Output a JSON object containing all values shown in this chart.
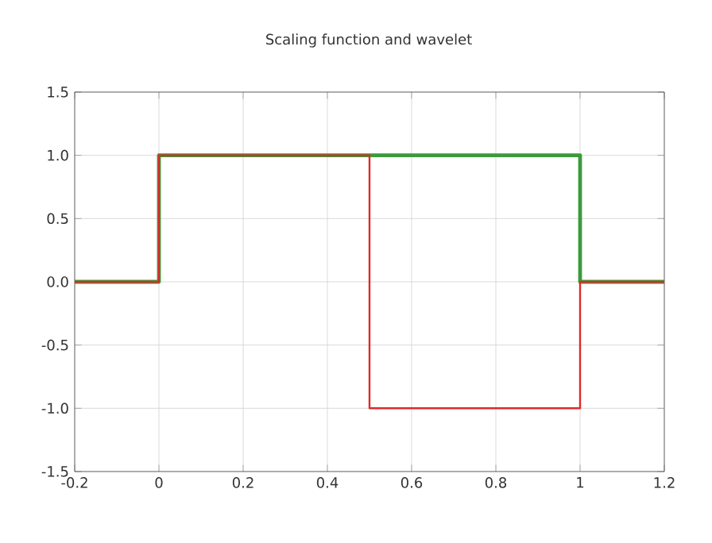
{
  "chart_data": {
    "type": "line",
    "title": "Scaling function and wavelet",
    "series": [
      {
        "color": "#3c9a3c",
        "x": [
          -0.2,
          0,
          0,
          1,
          1,
          1.2
        ],
        "values": [
          0,
          0,
          1,
          1,
          0,
          0
        ]
      },
      {
        "color": "#dd2a2a",
        "x": [
          -0.2,
          0,
          0,
          0.5,
          0.5,
          1,
          1,
          1.2
        ],
        "values": [
          0,
          0,
          1,
          1,
          -1,
          -1,
          0,
          0
        ]
      }
    ],
    "xlim": [
      -0.2,
      1.2
    ],
    "ylim": [
      -1.5,
      1.5
    ],
    "xticks": [
      -0.2,
      0,
      0.2,
      0.4,
      0.6,
      0.8,
      1,
      1.2
    ],
    "yticks": [
      1.5,
      {
        "value": 1,
        "label": "1.0"
      },
      0.5,
      {
        "value": 0,
        "label": "0.0"
      },
      -0.5,
      {
        "value": -1,
        "label": "-1.0"
      },
      -1.5
    ],
    "grid": true
  }
}
